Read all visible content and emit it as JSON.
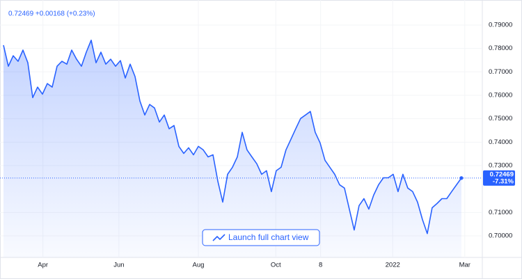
{
  "chart_data": {
    "type": "area",
    "title": "0.72469 +0.00168 (+0.23%)",
    "last_label": "0.72469",
    "change_label": "-7.31%",
    "button": "Launch full chart view",
    "color": "#2962ff",
    "grid": true,
    "values": [
      0.7814,
      0.7724,
      0.7769,
      0.7745,
      0.7793,
      0.7739,
      0.759,
      0.7635,
      0.7605,
      0.765,
      0.7635,
      0.7724,
      0.7745,
      0.7733,
      0.7793,
      0.7754,
      0.7724,
      0.7784,
      0.7835,
      0.7739,
      0.7784,
      0.7733,
      0.7754,
      0.7724,
      0.7748,
      0.7674,
      0.7733,
      0.768,
      0.7576,
      0.7516,
      0.7561,
      0.7546,
      0.7486,
      0.7516,
      0.7457,
      0.7471,
      0.7382,
      0.7352,
      0.7376,
      0.7346,
      0.7382,
      0.7367,
      0.7337,
      0.7346,
      0.7233,
      0.7144,
      0.7263,
      0.7293,
      0.7337,
      0.7442,
      0.7367,
      0.7337,
      0.7308,
      0.7263,
      0.7278,
      0.7189,
      0.7278,
      0.7293,
      0.7367,
      0.7412,
      0.7457,
      0.7501,
      0.7516,
      0.7531,
      0.7442,
      0.7397,
      0.7323,
      0.7293,
      0.7263,
      0.7218,
      0.7204,
      0.7114,
      0.7025,
      0.7129,
      0.7159,
      0.7114,
      0.7174,
      0.7218,
      0.7248,
      0.7248,
      0.7263,
      0.7189,
      0.7263,
      0.7204,
      0.7189,
      0.7144,
      0.707,
      0.701,
      0.712,
      0.7138,
      0.7159,
      0.7159,
      0.7189,
      0.7218,
      0.72469
    ],
    "xlim": [
      0,
      98.3
    ],
    "xticks": [
      {
        "value": 8.1,
        "label": "Apr"
      },
      {
        "value": 23.7,
        "label": "Jun"
      },
      {
        "value": 40,
        "label": "Aug"
      },
      {
        "value": 55.9,
        "label": "Oct"
      },
      {
        "value": 65.1,
        "label": "8"
      },
      {
        "value": 79.9,
        "label": "2022"
      },
      {
        "value": 94.7,
        "label": "Mar"
      }
    ],
    "ylim": [
      0.6908,
      0.7983
    ],
    "yticks": [
      {
        "value": 0.7,
        "label": "0.70000"
      },
      {
        "value": 0.71,
        "label": "0.71000"
      },
      {
        "value": 0.73,
        "label": "0.73000"
      },
      {
        "value": 0.74,
        "label": "0.74000"
      },
      {
        "value": 0.75,
        "label": "0.75000"
      },
      {
        "value": 0.76,
        "label": "0.76000"
      },
      {
        "value": 0.77,
        "label": "0.77000"
      },
      {
        "value": 0.78,
        "label": "0.78000"
      },
      {
        "value": 0.79,
        "label": "0.79000"
      }
    ]
  }
}
